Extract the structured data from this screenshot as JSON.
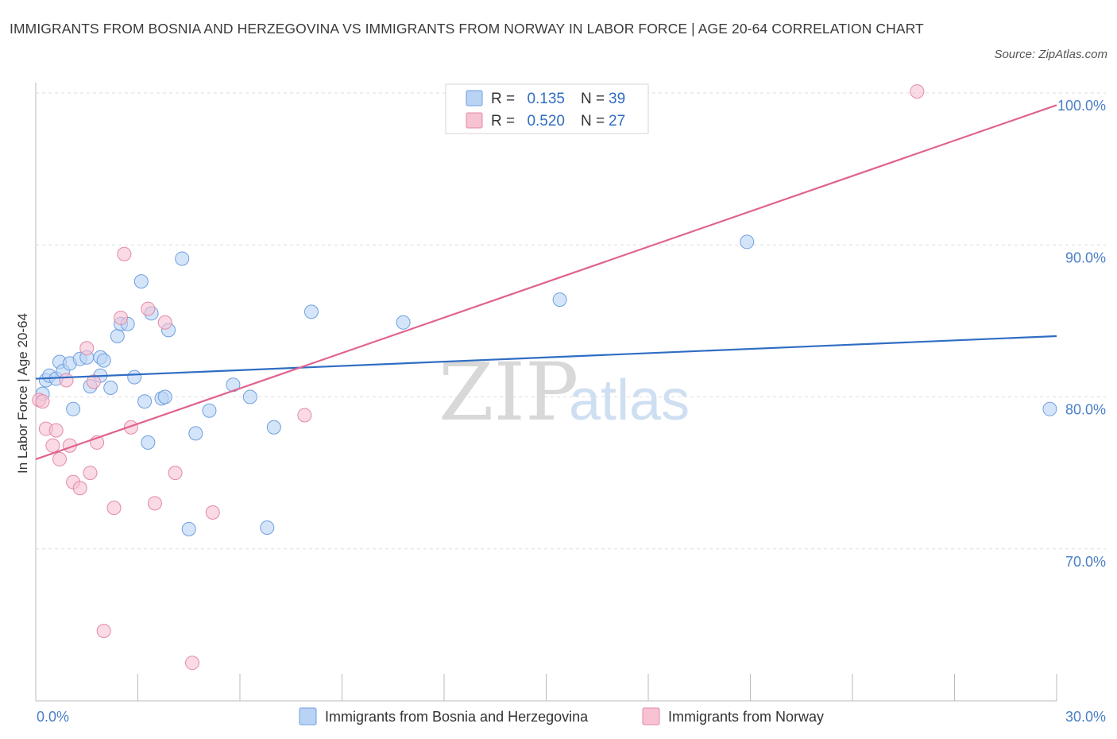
{
  "title": "IMMIGRANTS FROM BOSNIA AND HERZEGOVINA VS IMMIGRANTS FROM NORWAY IN LABOR FORCE | AGE 20-64 CORRELATION CHART",
  "source": "Source: ZipAtlas.com",
  "watermark": {
    "zip": "ZIP",
    "atlas": "atlas"
  },
  "legend": {
    "r_label": "R =",
    "n_label": "N =",
    "rows": [
      {
        "series": "bosnia",
        "r": "0.135",
        "n": "39"
      },
      {
        "series": "norway",
        "r": "0.520",
        "n": "27"
      }
    ]
  },
  "colors": {
    "bosnia_fill": "#b9d3f5",
    "bosnia_stroke": "#6f9fde",
    "bosnia_line": "#2f6dc4",
    "norway_fill": "#f7c2d2",
    "norway_stroke": "#e38aa8",
    "norway_line": "#e0628f",
    "grid": "#dddddd",
    "tick_text": "#4a7fc8"
  },
  "chart_data": {
    "type": "scatter",
    "title": "IMMIGRANTS FROM BOSNIA AND HERZEGOVINA VS IMMIGRANTS FROM NORWAY IN LABOR FORCE | AGE 20-64 CORRELATION CHART",
    "xlabel": "",
    "ylabel": "In Labor Force | Age 20-64",
    "xlim": [
      0,
      30
    ],
    "ylim": [
      60,
      100
    ],
    "x_ticks": [
      {
        "value": 0,
        "label": "0.0%"
      },
      {
        "value": 30,
        "label": "30.0%"
      }
    ],
    "y_ticks": [
      {
        "value": 100,
        "label": "100.0%"
      },
      {
        "value": 90,
        "label": "90.0%"
      },
      {
        "value": 80,
        "label": "80.0%"
      },
      {
        "value": 70,
        "label": "70.0%"
      }
    ],
    "series": [
      {
        "name": "Immigrants from Bosnia and Herzegovina",
        "key": "bosnia",
        "trend": [
          [
            0,
            81.2
          ],
          [
            30,
            84.0
          ]
        ],
        "points": [
          [
            0.2,
            80.2
          ],
          [
            0.3,
            81.1
          ],
          [
            0.4,
            81.4
          ],
          [
            0.6,
            81.2
          ],
          [
            0.7,
            82.3
          ],
          [
            0.8,
            81.7
          ],
          [
            1.0,
            82.2
          ],
          [
            1.1,
            79.2
          ],
          [
            1.3,
            82.5
          ],
          [
            1.5,
            82.6
          ],
          [
            1.6,
            80.7
          ],
          [
            1.9,
            82.6
          ],
          [
            1.9,
            81.4
          ],
          [
            2.2,
            80.6
          ],
          [
            2.4,
            84.0
          ],
          [
            2.5,
            84.8
          ],
          [
            2.7,
            84.8
          ],
          [
            2.9,
            81.3
          ],
          [
            3.1,
            87.6
          ],
          [
            3.2,
            79.7
          ],
          [
            3.3,
            77.0
          ],
          [
            3.4,
            85.5
          ],
          [
            3.7,
            79.9
          ],
          [
            3.8,
            80.0
          ],
          [
            3.9,
            84.4
          ],
          [
            4.3,
            89.1
          ],
          [
            4.5,
            71.3
          ],
          [
            4.7,
            77.6
          ],
          [
            5.1,
            79.1
          ],
          [
            5.8,
            80.8
          ],
          [
            6.3,
            80.0
          ],
          [
            6.8,
            71.4
          ],
          [
            7.0,
            78.0
          ],
          [
            8.1,
            85.6
          ],
          [
            10.8,
            84.9
          ],
          [
            15.4,
            86.4
          ],
          [
            20.9,
            90.2
          ],
          [
            29.8,
            79.2
          ],
          [
            2.0,
            82.4
          ]
        ]
      },
      {
        "name": "Immigrants from Norway",
        "key": "norway",
        "trend": [
          [
            0,
            75.9
          ],
          [
            30,
            99.2
          ]
        ],
        "points": [
          [
            0.1,
            79.8
          ],
          [
            0.2,
            79.7
          ],
          [
            0.3,
            77.9
          ],
          [
            0.5,
            76.8
          ],
          [
            0.6,
            77.8
          ],
          [
            0.7,
            75.9
          ],
          [
            0.9,
            81.1
          ],
          [
            1.0,
            76.8
          ],
          [
            1.1,
            74.4
          ],
          [
            1.3,
            74.0
          ],
          [
            1.5,
            83.2
          ],
          [
            1.6,
            75.0
          ],
          [
            1.7,
            81.0
          ],
          [
            1.8,
            77.0
          ],
          [
            2.0,
            64.6
          ],
          [
            2.3,
            72.7
          ],
          [
            2.5,
            85.2
          ],
          [
            2.6,
            89.4
          ],
          [
            2.8,
            78.0
          ],
          [
            3.3,
            85.8
          ],
          [
            3.5,
            73.0
          ],
          [
            3.8,
            84.9
          ],
          [
            4.1,
            75.0
          ],
          [
            4.6,
            62.5
          ],
          [
            5.2,
            72.4
          ],
          [
            7.9,
            78.8
          ],
          [
            25.9,
            100.1
          ]
        ]
      }
    ]
  },
  "bottom_legend": [
    {
      "series": "bosnia",
      "label": "Immigrants from Bosnia and Herzegovina"
    },
    {
      "series": "norway",
      "label": "Immigrants from Norway"
    }
  ]
}
